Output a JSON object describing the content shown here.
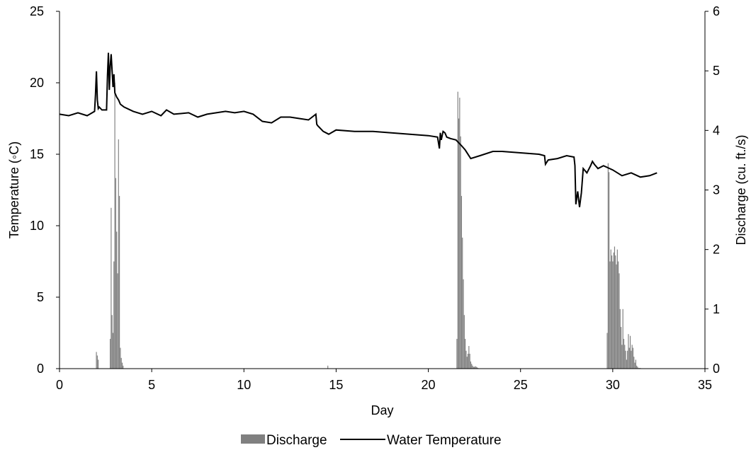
{
  "chart_data": {
    "type": "combo-bar-line",
    "xlabel": "Day",
    "ylabel_left": "Temperature (◦C)",
    "ylabel_right": "Discharge (cu. ft./s)",
    "xlim": [
      0,
      35
    ],
    "ylim_left": [
      0,
      25
    ],
    "ylim_right": [
      0,
      6
    ],
    "x_ticks": [
      0,
      5,
      10,
      15,
      20,
      25,
      30,
      35
    ],
    "y_ticks_left": [
      0,
      5,
      10,
      15,
      20,
      25
    ],
    "y_ticks_right": [
      0,
      1,
      2,
      3,
      4,
      5,
      6
    ],
    "grid": false,
    "legend_position": "bottom",
    "colors": {
      "discharge": "#808080",
      "temperature": "#000000"
    },
    "series": [
      {
        "name": "Discharge",
        "type": "bar",
        "axis": "right",
        "x": [
          2.0,
          2.05,
          2.1,
          2.75,
          2.8,
          2.85,
          2.9,
          2.95,
          3.0,
          3.05,
          3.1,
          3.15,
          3.2,
          3.25,
          3.3,
          3.35,
          3.4,
          3.45,
          14.55,
          21.55,
          21.6,
          21.65,
          21.7,
          21.75,
          21.8,
          21.85,
          21.9,
          21.95,
          22.0,
          22.05,
          22.1,
          22.15,
          22.2,
          22.25,
          22.3,
          22.35,
          22.4,
          22.45,
          22.5,
          22.55,
          22.6,
          22.65,
          22.7,
          29.7,
          29.75,
          29.8,
          29.85,
          29.9,
          29.95,
          30.0,
          30.05,
          30.1,
          30.15,
          30.2,
          30.25,
          30.3,
          30.35,
          30.4,
          30.45,
          30.5,
          30.55,
          30.6,
          30.65,
          30.7,
          30.75,
          30.8,
          30.85,
          30.9,
          30.95,
          31.0,
          31.05,
          31.1,
          31.15,
          31.2,
          31.25,
          31.3,
          31.35,
          31.4,
          31.45,
          31.5
        ],
        "values": [
          0.28,
          0.22,
          0.15,
          0.5,
          2.7,
          0.9,
          0.6,
          1.8,
          4.8,
          3.2,
          2.3,
          1.6,
          3.85,
          2.9,
          0.35,
          0.18,
          0.1,
          0.05,
          0.05,
          0.5,
          4.65,
          4.2,
          4.55,
          3.9,
          2.9,
          2.2,
          1.5,
          0.9,
          0.5,
          0.3,
          0.2,
          0.25,
          0.38,
          0.25,
          0.12,
          0.08,
          0.05,
          0.03,
          0.03,
          0.04,
          0.03,
          0.02,
          0.01,
          0.6,
          3.45,
          3.3,
          1.8,
          2.0,
          1.9,
          1.8,
          1.95,
          2.05,
          1.9,
          1.75,
          2.0,
          1.8,
          1.6,
          1.0,
          0.7,
          0.4,
          1.0,
          0.5,
          0.4,
          0.3,
          0.15,
          0.3,
          0.58,
          0.35,
          0.55,
          0.3,
          0.4,
          0.35,
          0.2,
          0.1,
          0.15,
          0.05,
          0.03,
          0.01,
          0.01,
          0.01
        ]
      },
      {
        "name": "Water Temperature",
        "type": "line",
        "axis": "left",
        "x": [
          0,
          0.5,
          1.0,
          1.5,
          1.9,
          1.95,
          2.0,
          2.05,
          2.1,
          2.15,
          2.3,
          2.55,
          2.6,
          2.65,
          2.7,
          2.75,
          2.8,
          2.9,
          2.95,
          3.0,
          3.1,
          3.2,
          3.3,
          3.5,
          4.0,
          4.5,
          5.0,
          5.5,
          5.8,
          6.2,
          7.0,
          7.5,
          8.0,
          8.5,
          9.0,
          9.5,
          10.0,
          10.5,
          11.0,
          11.5,
          12.0,
          12.5,
          13.0,
          13.5,
          13.9,
          13.95,
          14.0,
          14.3,
          14.6,
          15.0,
          16.0,
          17.0,
          18.0,
          19.0,
          20.0,
          20.5,
          20.6,
          20.65,
          20.7,
          20.8,
          20.9,
          21.0,
          21.2,
          21.5,
          21.8,
          22.0,
          22.3,
          22.8,
          23.5,
          24.0,
          25.0,
          26.0,
          26.3,
          26.35,
          26.5,
          27.0,
          27.5,
          27.9,
          27.95,
          28.0,
          28.1,
          28.2,
          28.3,
          28.4,
          28.6,
          28.8,
          28.9,
          29.0,
          29.2,
          29.5,
          30.0,
          30.5,
          31.0,
          31.5,
          32.0,
          32.4
        ],
        "values": [
          17.8,
          17.7,
          17.9,
          17.7,
          18.0,
          19.2,
          20.8,
          18.8,
          18.2,
          18.3,
          18.1,
          18.1,
          20.5,
          22.1,
          19.5,
          21.2,
          22.0,
          19.7,
          20.6,
          19.3,
          19.0,
          18.8,
          18.5,
          18.3,
          18.0,
          17.8,
          18.0,
          17.7,
          18.1,
          17.8,
          17.9,
          17.6,
          17.8,
          17.9,
          18.0,
          17.9,
          18.0,
          17.8,
          17.3,
          17.2,
          17.6,
          17.6,
          17.5,
          17.4,
          17.8,
          17.1,
          17.0,
          16.6,
          16.4,
          16.7,
          16.6,
          16.6,
          16.5,
          16.4,
          16.3,
          16.2,
          15.4,
          16.5,
          16.0,
          16.6,
          16.5,
          16.2,
          16.1,
          16.0,
          15.6,
          15.3,
          14.7,
          14.9,
          15.2,
          15.2,
          15.1,
          15.0,
          14.9,
          14.3,
          14.6,
          14.7,
          14.9,
          14.8,
          14.2,
          11.5,
          12.4,
          11.3,
          12.3,
          14.0,
          13.7,
          14.2,
          14.5,
          14.3,
          14.0,
          14.2,
          13.9,
          13.5,
          13.7,
          13.4,
          13.5,
          13.7
        ]
      }
    ]
  }
}
